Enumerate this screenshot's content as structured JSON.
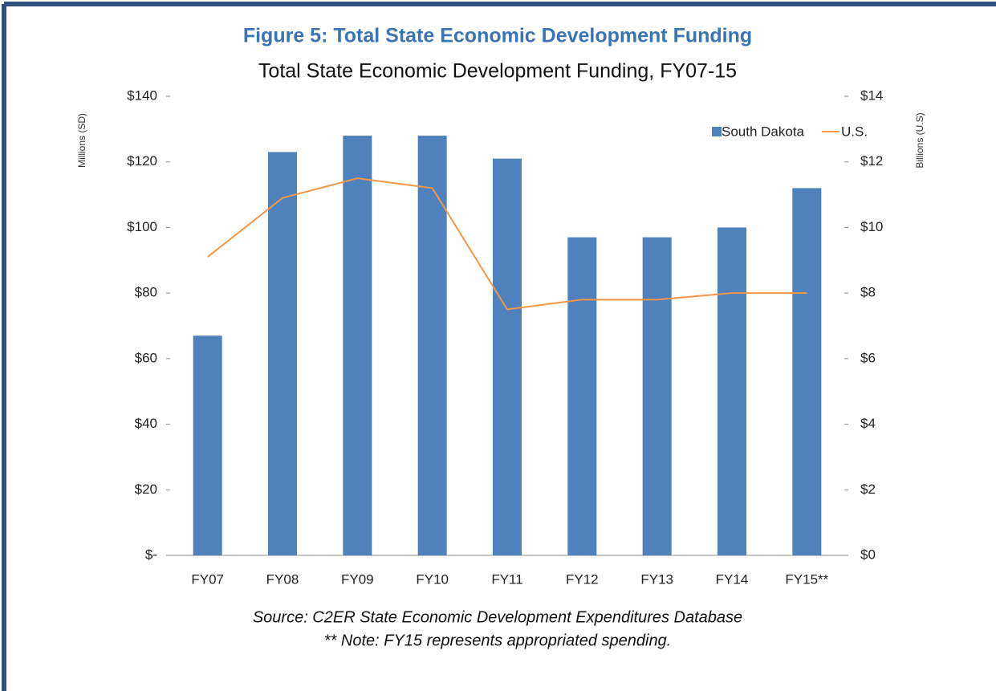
{
  "chart_data": {
    "type": "bar",
    "figure_caption": "Figure 5: Total State Economic Development Funding",
    "title": "Total State Economic Development Funding, FY07-15",
    "y_label": "Millions (SD)",
    "y2_label": "Billions (U.S)",
    "categories": [
      "FY07",
      "FY08",
      "FY09",
      "FY10",
      "FY11",
      "FY12",
      "FY13",
      "FY14",
      "FY15**"
    ],
    "series": [
      {
        "name": "South Dakota",
        "type": "bar",
        "axis": "y",
        "color": "#4f81bd",
        "values": [
          67,
          123,
          128,
          128,
          121,
          97,
          97,
          100,
          112
        ]
      },
      {
        "name": "U.S.",
        "type": "line",
        "axis": "y2",
        "color": "#f79646",
        "values": [
          9.1,
          10.9,
          11.5,
          11.2,
          7.5,
          7.8,
          7.8,
          8.0,
          8.0
        ]
      }
    ],
    "ylim": [
      0,
      140
    ],
    "yticks": [
      {
        "value": 0,
        "label": "$-"
      },
      {
        "value": 20,
        "label": "$20"
      },
      {
        "value": 40,
        "label": "$40"
      },
      {
        "value": 60,
        "label": "$60"
      },
      {
        "value": 80,
        "label": "$80"
      },
      {
        "value": 100,
        "label": "$100"
      },
      {
        "value": 120,
        "label": "$120"
      },
      {
        "value": 140,
        "label": "$140"
      }
    ],
    "y2lim": [
      0,
      14
    ],
    "y2ticks": [
      {
        "value": 0,
        "label": "$0"
      },
      {
        "value": 2,
        "label": "$2"
      },
      {
        "value": 4,
        "label": "$4"
      },
      {
        "value": 6,
        "label": "$6"
      },
      {
        "value": 8,
        "label": "$8"
      },
      {
        "value": 10,
        "label": "$10"
      },
      {
        "value": 12,
        "label": "$12"
      },
      {
        "value": 14,
        "label": "$14"
      }
    ],
    "legend": "upper right",
    "source": "Source: C2ER State Economic Development Expenditures Database",
    "note": "** Note: FY15 represents appropriated spending."
  }
}
